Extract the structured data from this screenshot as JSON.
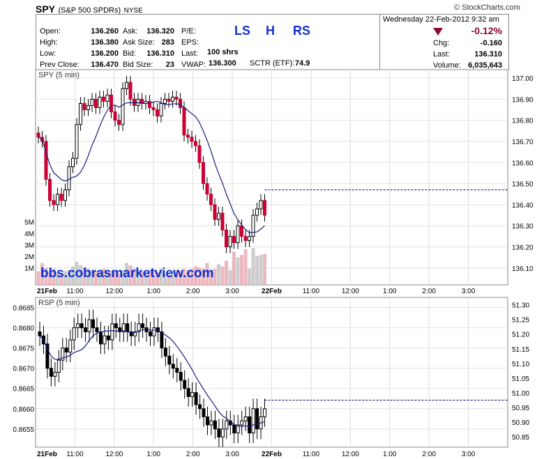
{
  "header": {
    "symbol": "SPY",
    "name": "(S&P 500 SPDRs)",
    "exchange": "NYSE",
    "source": "© StockCharts.com",
    "date": "Wednesday  22-Feb-2012  9:32 am",
    "change_pct": "-0.12%",
    "watermark_labels": {
      "ls": "LS",
      "h": "H",
      "rs": "RS"
    },
    "quote": [
      {
        "label": "Open:",
        "value": "136.260"
      },
      {
        "label": "High:",
        "value": "136.380"
      },
      {
        "label": "Low:",
        "value": "136.200"
      },
      {
        "label": "Prev Close:",
        "value": "136.470"
      }
    ],
    "quote2": [
      {
        "label": "Ask:",
        "value": "136.320"
      },
      {
        "label": "Ask Size:",
        "value": "283"
      },
      {
        "label": "Bid:",
        "value": "136.310"
      },
      {
        "label": "Bid Size:",
        "value": "23"
      }
    ],
    "quote3": [
      {
        "label": "P/E:",
        "value": ""
      },
      {
        "label": "EPS:",
        "value": ""
      },
      {
        "label": "Last:",
        "value": "100 shrs"
      },
      {
        "label": "VWAP:",
        "value": "136.300"
      }
    ],
    "sctr_label": "SCTR (ETF):",
    "sctr_value": "74.9",
    "right": [
      {
        "label": "Chg:",
        "value": "-0.160"
      },
      {
        "label": "Last:",
        "value": "136.310"
      },
      {
        "label": "Volume:",
        "value": "6,035,643"
      }
    ]
  },
  "watermark": "bbs.cobrasmarketview.com",
  "colors": {
    "up": "#000000",
    "down": "#cc0033",
    "ma": "#1a1a80",
    "vol": "#c0c0c0",
    "vol_down": "#e8a8b0",
    "ref": "#000080"
  },
  "chart_data": [
    {
      "type": "candlestick",
      "title": "SPY (5 min)",
      "ylim": [
        136.02,
        137.04
      ],
      "y_ticks": [
        "137.00",
        "136.90",
        "136.80",
        "136.70",
        "136.60",
        "136.50",
        "136.40",
        "136.30",
        "136.20",
        "136.10"
      ],
      "x_ticks": [
        "21Feb",
        "11:00",
        "12:00",
        "1:00",
        "2:00",
        "3:00",
        "22Feb",
        "11:00",
        "12:00",
        "1:00",
        "2:00",
        "3:00"
      ],
      "volume_ticks": [
        "5M",
        "4M",
        "3M",
        "2M",
        "1M"
      ],
      "reference_line": 136.47,
      "close": [
        136.72,
        136.7,
        136.52,
        136.42,
        136.4,
        136.45,
        136.42,
        136.47,
        136.58,
        136.62,
        136.78,
        136.88,
        136.85,
        136.87,
        136.9,
        136.86,
        136.91,
        136.89,
        136.92,
        136.84,
        136.8,
        136.78,
        136.95,
        136.98,
        136.9,
        136.87,
        136.9,
        136.88,
        136.89,
        136.86,
        136.85,
        136.82,
        136.88,
        136.9,
        136.89,
        136.91,
        136.9,
        136.86,
        136.73,
        136.72,
        136.7,
        136.68,
        136.6,
        136.5,
        136.45,
        136.4,
        136.33,
        136.36,
        136.28,
        136.2,
        136.25,
        136.22,
        136.3,
        136.25,
        136.23,
        136.25,
        136.35,
        136.38,
        136.42,
        136.35
      ],
      "volume": [
        1.2,
        1.9,
        1.5,
        1.2,
        1.4,
        1.1,
        0.9,
        1.2,
        1.3,
        1.6,
        2.0,
        1.7,
        1.5,
        1.4,
        1.3,
        1.2,
        1.3,
        1.4,
        1.3,
        1.2,
        1.1,
        1.0,
        1.3,
        1.9,
        1.7,
        1.4,
        1.3,
        1.2,
        1.1,
        1.3,
        1.2,
        1.1,
        1.4,
        1.0,
        0.9,
        1.2,
        1.3,
        1.2,
        1.4,
        1.3,
        1.4,
        1.6,
        1.5,
        1.4,
        1.9,
        1.3,
        1.4,
        1.8,
        1.6,
        2.1,
        1.3,
        2.9,
        2.4,
        2.6,
        3.1,
        1.4,
        3.2,
        2.5,
        2.6,
        2.7
      ]
    },
    {
      "type": "line",
      "title": "RSP (5 min)",
      "ylim": [
        0.86505,
        0.86875
      ],
      "y_ticks_left": [
        "0.8685",
        "0.8680",
        "0.8675",
        "0.8670",
        "0.8665",
        "0.8660",
        "0.8655"
      ],
      "y_ticks_right": [
        "51.30",
        "51.25",
        "51.20",
        "51.15",
        "51.10",
        "51.05",
        "51.00",
        "50.95",
        "50.90",
        "50.85"
      ],
      "x_ticks": [
        "21Feb",
        "11:00",
        "12:00",
        "1:00",
        "2:00",
        "3:00",
        "22Feb",
        "11:00",
        "12:00",
        "1:00",
        "2:00",
        "3:00"
      ],
      "reference_line": 50.975,
      "close": [
        0.8678,
        0.8676,
        0.867,
        0.8668,
        0.8669,
        0.8672,
        0.8675,
        0.8674,
        0.8677,
        0.868,
        0.8681,
        0.868,
        0.8679,
        0.8682,
        0.868,
        0.8679,
        0.8676,
        0.8678,
        0.8677,
        0.8681,
        0.868,
        0.8679,
        0.8681,
        0.8679,
        0.8678,
        0.8679,
        0.8681,
        0.868,
        0.8679,
        0.8678,
        0.868,
        0.8679,
        0.8675,
        0.8673,
        0.8671,
        0.867,
        0.8669,
        0.8667,
        0.8665,
        0.8663,
        0.8664,
        0.8661,
        0.866,
        0.8658,
        0.8656,
        0.8657,
        0.8655,
        0.8653,
        0.8655,
        0.8657,
        0.8656,
        0.8654,
        0.8656,
        0.8657,
        0.8658,
        0.8654,
        0.866,
        0.8655,
        0.8658,
        0.866
      ]
    }
  ]
}
